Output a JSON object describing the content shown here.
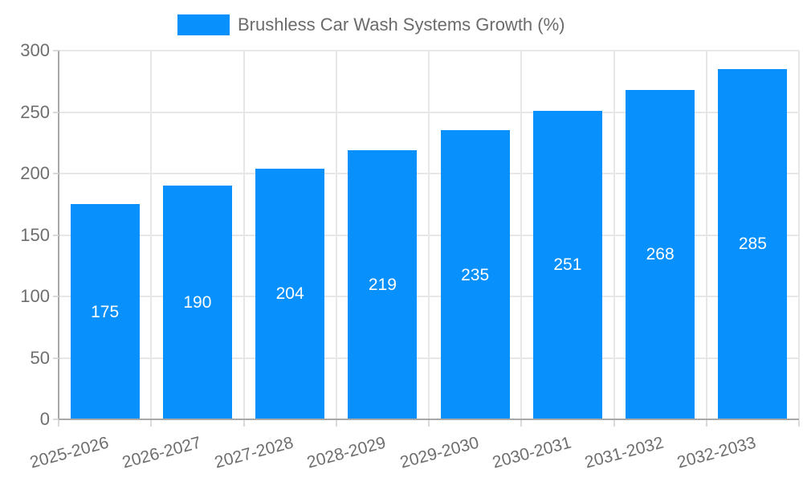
{
  "legend": {
    "label": "Brushless Car Wash Systems Growth (%)"
  },
  "chart_data": {
    "type": "bar",
    "title": "Brushless Car Wash Systems Growth (%)",
    "categories": [
      "2025-2026",
      "2026-2027",
      "2027-2028",
      "2028-2029",
      "2029-2030",
      "2030-2031",
      "2031-2032",
      "2032-2033"
    ],
    "series": [
      {
        "name": "Brushless Car Wash Systems Growth (%)",
        "values": [
          175,
          190,
          204,
          219,
          235,
          251,
          268,
          285
        ]
      }
    ],
    "bar_value_labels": [
      "175",
      "190",
      "204",
      "219",
      "235",
      "251",
      "268",
      "285"
    ],
    "xlabel": "",
    "ylabel": "",
    "ylim": [
      0,
      300
    ],
    "yticks": [
      0,
      50,
      100,
      150,
      200,
      250,
      300
    ],
    "grid": true,
    "legend_position": "top-center",
    "colors": {
      "bar": "#0890fc",
      "bar_label_text": "#ffffff",
      "axis_text": "#6e6e6e",
      "grid_line": "#e7e7e7",
      "axis_line": "#a8a8a8",
      "tick_mark": "#d9d9d9",
      "background": "#ffffff"
    }
  }
}
